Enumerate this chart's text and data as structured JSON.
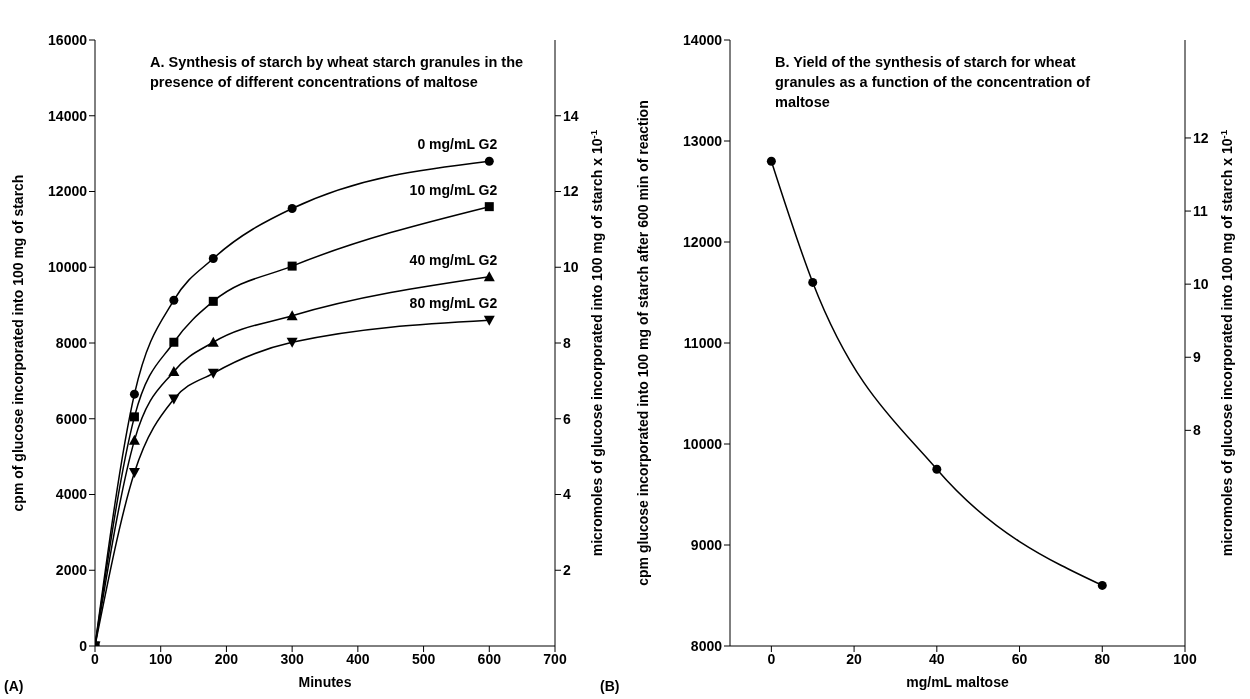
{
  "chart_data": [
    {
      "type": "line",
      "title": "A. Synthesis of starch by wheat starch granules in the presence of different concentrations of maltose",
      "xlabel": "Minutes",
      "ylabel": "cpm of glucose incorporated into 100 mg of starch",
      "y2label": "micromoles of glucose incorporated into 100 mg of starch x 10$^{-1}$",
      "x": [
        0,
        60,
        120,
        180,
        300,
        600
      ],
      "series": [
        {
          "name": "0 mg/mL G2",
          "color": "#000000",
          "marker": "circle",
          "values": [
            0,
            6650,
            9130,
            10230,
            11550,
            12800
          ]
        },
        {
          "name": "10 mg/mL G2",
          "color": "#000000",
          "marker": "square",
          "values": [
            0,
            6050,
            8020,
            9100,
            10030,
            11600
          ]
        },
        {
          "name": "40 mg/mL G2",
          "color": "#000000",
          "marker": "triangle",
          "values": [
            0,
            5430,
            7250,
            8020,
            8720,
            9750
          ]
        },
        {
          "name": "80 mg/mL G2",
          "color": "#000000",
          "marker": "triangle-down",
          "values": [
            0,
            4580,
            6520,
            7200,
            8020,
            8600
          ]
        }
      ],
      "xlim": [
        0,
        700
      ],
      "xticks": [
        0,
        100,
        200,
        300,
        400,
        500,
        600,
        700
      ],
      "ylim": [
        0,
        16000
      ],
      "yticks": [
        0,
        2000,
        4000,
        6000,
        8000,
        10000,
        12000,
        14000,
        16000
      ],
      "y2lim": [
        0,
        16
      ],
      "y2ticks": [
        2,
        4,
        6,
        8,
        10,
        12,
        14
      ],
      "line_style": "solid",
      "annotations": [
        "(A)"
      ]
    },
    {
      "type": "line",
      "title": "B. Yield of the synthesis of starch for wheat granules as a function of the concentration of maltose",
      "xlabel": "mg/mL maltose",
      "ylabel": "cpm glucose incorporated into 100 mg of starch after 600 min of reaction",
      "y2label": "micromoles of glucose incorporated into 100 mg of starch x 10$^{-1}$",
      "x": [
        0,
        10,
        40,
        80
      ],
      "series": [
        {
          "color": "#000000",
          "marker": "circle",
          "values": [
            12800,
            11600,
            9750,
            8600
          ]
        }
      ],
      "xlim": [
        -10,
        100
      ],
      "xticks": [
        0,
        20,
        40,
        60,
        80,
        100
      ],
      "ylim": [
        8000,
        14000
      ],
      "yticks": [
        8000,
        9000,
        10000,
        11000,
        12000,
        13000,
        14000
      ],
      "y2lim": [
        5.05,
        13.34
      ],
      "y2ticks": [
        8,
        9,
        10,
        11,
        12
      ],
      "line_style": "solid",
      "annotations": [
        "(B)"
      ]
    }
  ]
}
